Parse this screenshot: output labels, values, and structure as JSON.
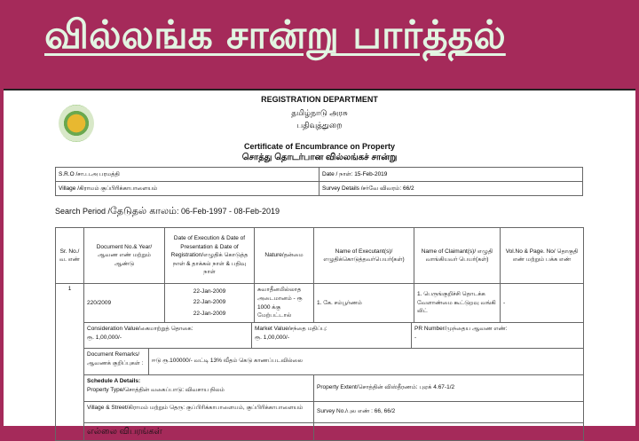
{
  "banner": {
    "title": "வில்லங்க சான்று பார்த்தல்",
    "bg": "#a52a5a",
    "title_color": "#e2f5e2"
  },
  "header": {
    "dept": "REGISTRATION DEPARTMENT",
    "govt": "தமிழ்நாடு அரசு",
    "dept_ta": "பதிவுத்துறை",
    "cert": "Certificate of Encumbrance on Property",
    "cert_ta": "சொத்து தொடர்பான வில்லங்கச் சான்று",
    "emblem": "tamil-nadu-emblem"
  },
  "info": {
    "sro": "S.R.O /சா.ப.அ பரமத்தி",
    "date": "Date / நாள்: 15-Feb-2019",
    "village": "Village /கிராமம் குப்பிரிக்காபாளையம்",
    "survey": "Survey Details /சர்வே விவரம்: 66/2"
  },
  "search": {
    "label": "Search Period /",
    "label_ta": "தேடுதல் காலம்",
    "range": ": 06-Feb-1997 - 08-Feb-2019"
  },
  "table": {
    "headers": [
      "Sr. No./வ. எண்",
      "Document No.& Year/ ஆவண எண் மற்றும் ஆண்டு",
      "Date of Execution & Date of Presentation & Date of Registration/எழுதிக் கொடுத்த நாள் & தாக்கல் நாள் & பதிவு நாள்",
      "Nature/தன்மை",
      "Name of Executant(s)/ எழுதிக்கொடுத்தவர்பெயர்(கள்)",
      "Name of Claimant(s)/ எழுதி வாங்கியவர் பெயர்(கள்)",
      "Vol.No & Page. No/ தொகுதி எண் மற்றும் பக்க எண்"
    ],
    "row": {
      "sr": "1",
      "doc": "220/2009",
      "dates": [
        "22-Jan-2009",
        "22-Jan-2009",
        "22-Jan-2009"
      ],
      "nature": "சுவாதீனமில்லாத அடைமானம் - ரூ 1000 க்கு மேற்பட்டால்",
      "executant": "1. கே. சம்பூர்ணம்",
      "claimant": "1. பெருங்குறிச்சி தொடக்க வேளாண்மை கூட்டுறவு வங்கி லிட்",
      "vol": "-",
      "consideration_label": "Consideration Value/கைமாற்றுத் தொகை:",
      "consideration": "ரூ. 1,00,000/-",
      "market_label": "Market Value/சந்தை மதிப்பு:",
      "market": "ரூ. 1,00,000/-",
      "pr_label": "PR Number/முந்தைய ஆவண எண்:",
      "pr": "-",
      "remarks_label": "Document Remarks/ ஆவணக் குறிப்புகள் :",
      "remarks": "ஈடு ரூ.100000/- வட்டி 13% வீதம் கெடு காணப்படவில்லை",
      "schedule_label": "Schedule A Details:",
      "property_type": "Property Type/சொத்தின் வகைப்பாடு: விவசாய நிலம்",
      "extent": "Property Extent/சொத்தின் விஸ்தீரணம்: புஏக் 4.67-1/2",
      "village_street": "Village & Street/கிராமம் மற்றும் தெரு: குப்பிரிக்காபாளையம், குப்பிரிக்காபாளையம்",
      "survey_no": "Survey No./புல எண் : 66, 66/2",
      "boundaries": "எல்லை விபரங்கள்"
    }
  }
}
